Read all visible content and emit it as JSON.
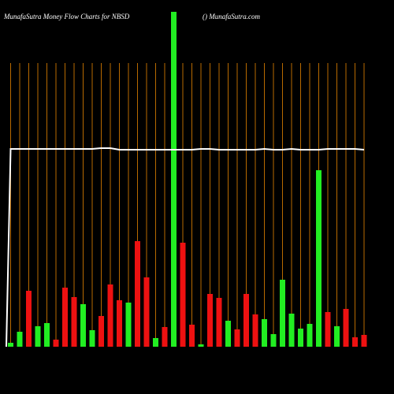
{
  "chart_data": {
    "type": "bar",
    "title": "MunafaSutra  Money Flow  Charts for NBSD",
    "subtitle": "() MunafaSutra.com",
    "ylim": [
      0,
      440
    ],
    "values": [
      5,
      19,
      71,
      26,
      30,
      9,
      75,
      63,
      54,
      21,
      39,
      79,
      59,
      56,
      134,
      88,
      11,
      25,
      425,
      132,
      28,
      3,
      67,
      62,
      33,
      22,
      67,
      41,
      35,
      16,
      85,
      42,
      23,
      29,
      224,
      44,
      26,
      48,
      12,
      15
    ],
    "colors": [
      "#22ee22",
      "#22ee22",
      "#ee1111",
      "#22ee22",
      "#22ee22",
      "#ee1111",
      "#ee1111",
      "#ee1111",
      "#22ee22",
      "#22ee22",
      "#ee1111",
      "#ee1111",
      "#ee1111",
      "#22ee22",
      "#ee1111",
      "#ee1111",
      "#22ee22",
      "#ee1111",
      "#22ee22",
      "#ee1111",
      "#ee1111",
      "#22ee22",
      "#ee1111",
      "#ee1111",
      "#22ee22",
      "#ee1111",
      "#ee1111",
      "#ee1111",
      "#22ee22",
      "#22ee22",
      "#22ee22",
      "#22ee22",
      "#22ee22",
      "#22ee22",
      "#22ee22",
      "#ee1111",
      "#22ee22",
      "#ee1111",
      "#ee1111",
      "#ee1111"
    ],
    "line": {
      "color": "#ffffff",
      "values": [
        251,
        251,
        251,
        251,
        251,
        251,
        251,
        251,
        251,
        251,
        252,
        252,
        250,
        250,
        250,
        250,
        250,
        250,
        250,
        250,
        250,
        251,
        251,
        250,
        250,
        250,
        250,
        250,
        251,
        250,
        250,
        251,
        250,
        250,
        250,
        251,
        251,
        251,
        251,
        250
      ]
    },
    "grid_color": "#b86a00"
  }
}
